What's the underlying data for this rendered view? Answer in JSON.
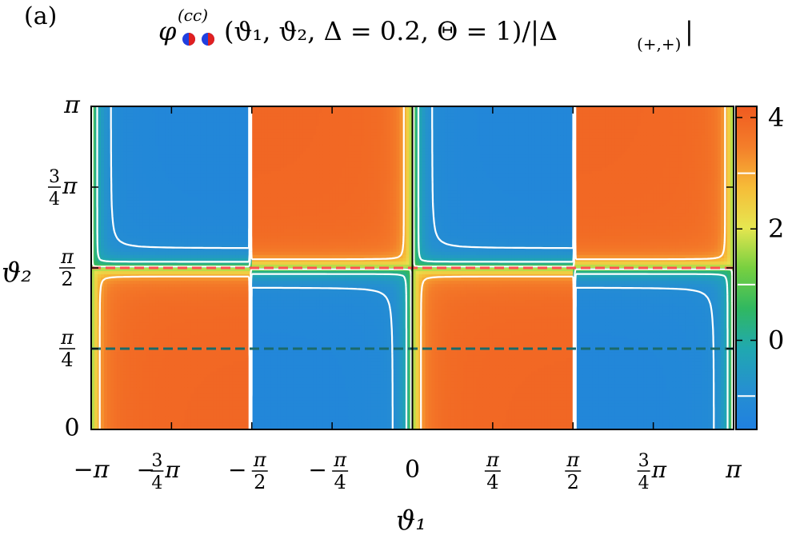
{
  "panel_label": "(a)",
  "title": {
    "symbol": "φ",
    "superscript": "(cc)",
    "args": "(ϑ₁, ϑ₂, Δ = 0.2, Θ = 1)/|Δ",
    "subscript": "(+,+)",
    "close": "|",
    "glyph_colors": [
      "#2040e0",
      "#e02020"
    ]
  },
  "chart_data": {
    "type": "heatmap",
    "xlabel": "ϑ₁",
    "ylabel": "ϑ₂",
    "x_range": [
      -3.14159,
      3.14159
    ],
    "y_range": [
      0,
      3.14159
    ],
    "x_ticks": [
      {
        "value": -3.14159,
        "label": "−π"
      },
      {
        "value": -2.35619,
        "label": "−¾π"
      },
      {
        "value": -1.5708,
        "label": "−π/2"
      },
      {
        "value": -0.7854,
        "label": "−π/4"
      },
      {
        "value": 0,
        "label": "0"
      },
      {
        "value": 0.7854,
        "label": "π/4"
      },
      {
        "value": 1.5708,
        "label": "π/2"
      },
      {
        "value": 2.35619,
        "label": "¾π"
      },
      {
        "value": 3.14159,
        "label": "π"
      }
    ],
    "y_ticks": [
      {
        "value": 0,
        "label": "0"
      },
      {
        "value": 0.7854,
        "label": "π/4"
      },
      {
        "value": 1.5708,
        "label": "π/2"
      },
      {
        "value": 2.35619,
        "label": "¾π"
      },
      {
        "value": 3.14159,
        "label": "π"
      }
    ],
    "colorbar": {
      "range": [
        -1.6,
        4.2
      ],
      "ticks": [
        {
          "value": 4,
          "label": "4"
        },
        {
          "value": 2,
          "label": "2"
        },
        {
          "value": 0,
          "label": "0"
        }
      ],
      "colors": [
        "#2080e0",
        "#2590d0",
        "#20a8b0",
        "#30b860",
        "#78d040",
        "#e6e650",
        "#f6bc38",
        "#f47e2a",
        "#f05a20"
      ],
      "minor_marks": [
        -1,
        1,
        3
      ]
    },
    "contour_levels": [
      -1,
      0,
      1,
      3
    ],
    "reference_lines": [
      {
        "y": 1.5708,
        "color": "#ff5050",
        "style": "dashed"
      },
      {
        "y": 0.7854,
        "color": "#1a6a6a",
        "style": "dashed"
      }
    ],
    "vertical_line_x": 0,
    "grid": false,
    "legend": "none"
  }
}
